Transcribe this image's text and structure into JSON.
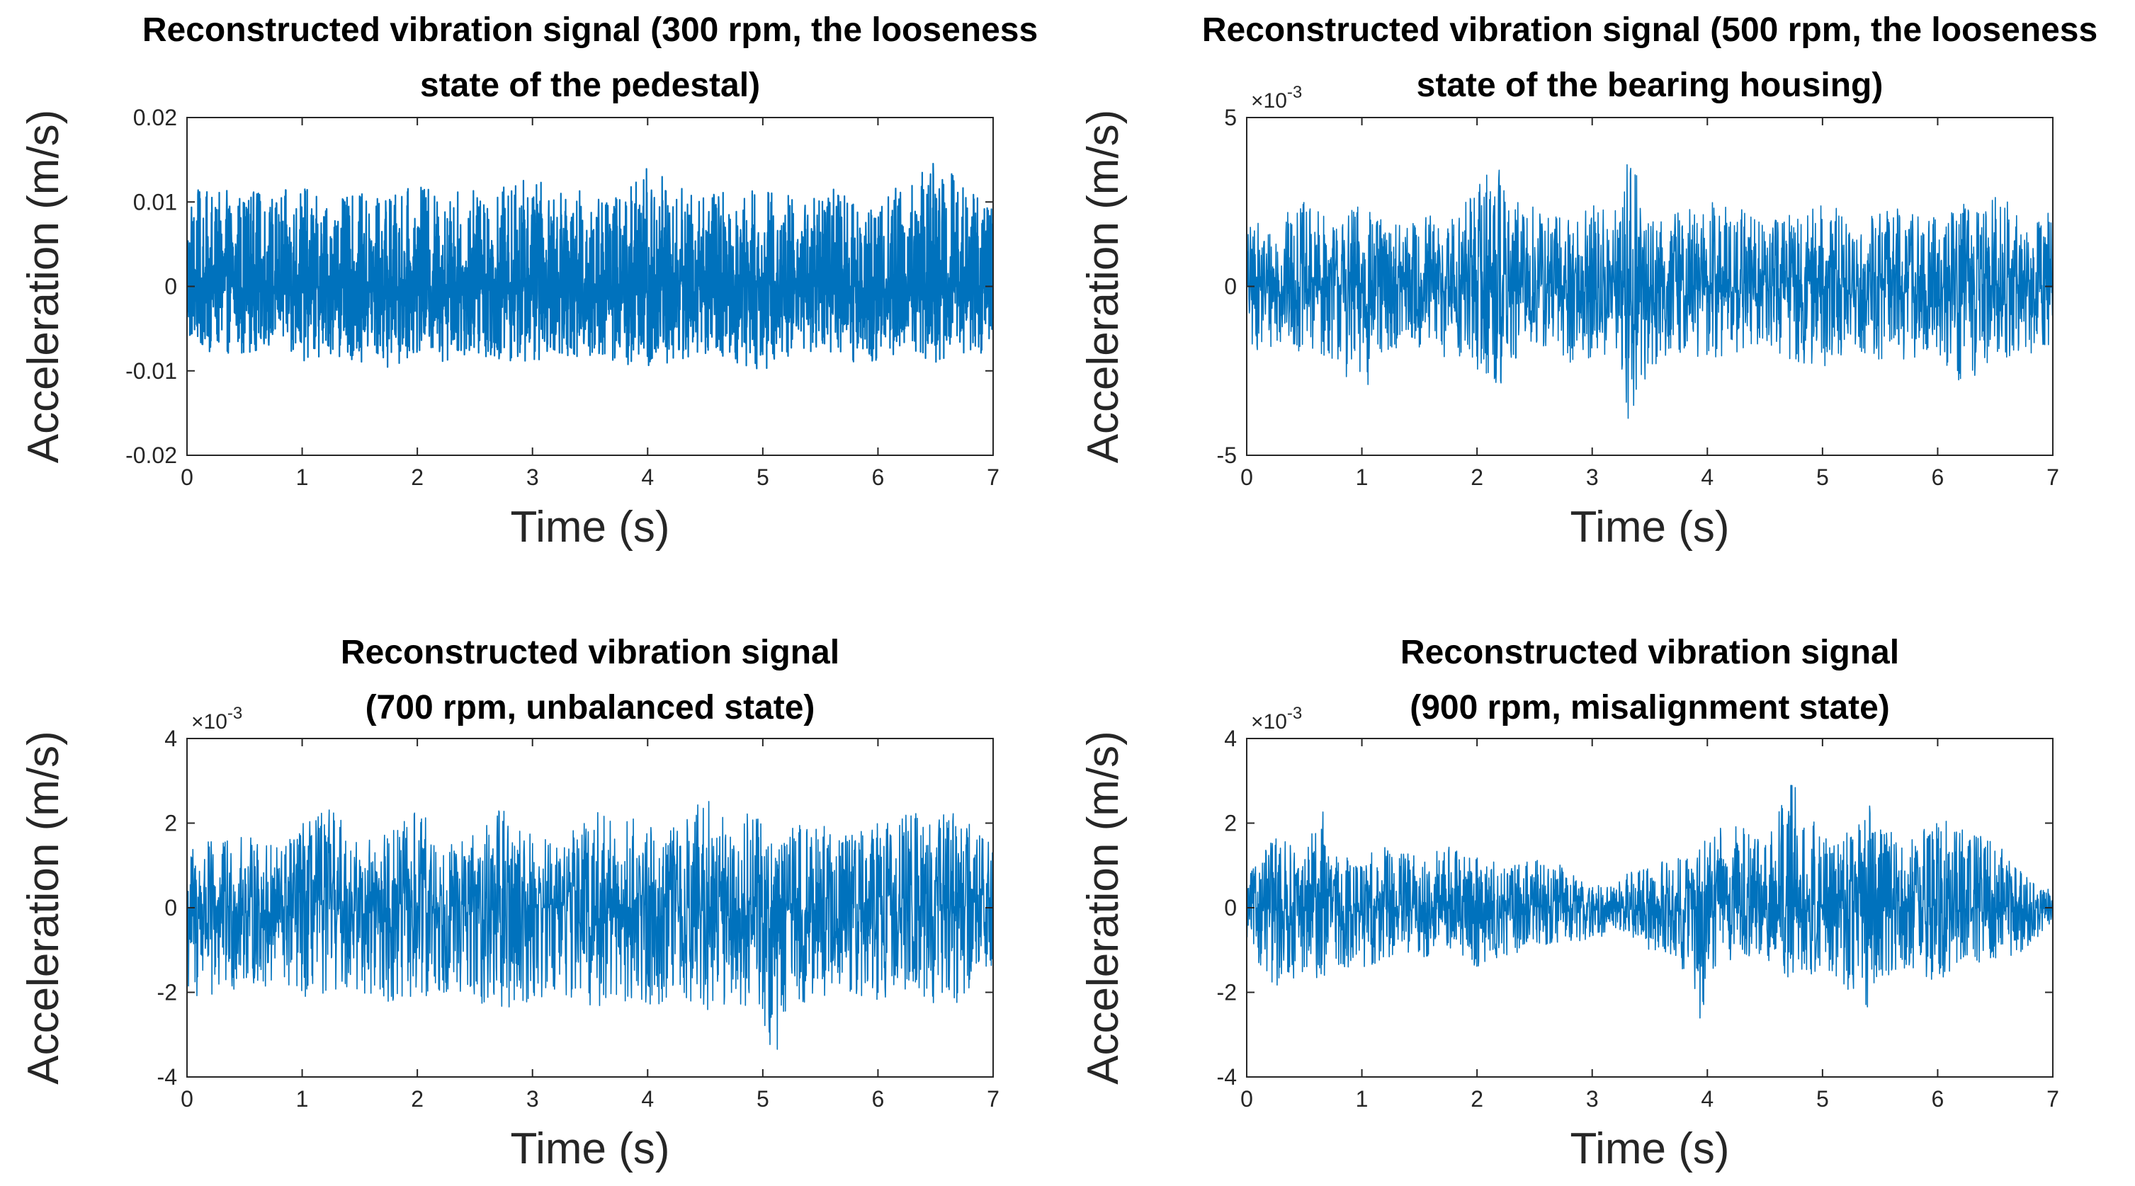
{
  "colors": {
    "series": "#0072BD",
    "axes": "#262626",
    "background": "#ffffff"
  },
  "chart_data": [
    {
      "type": "line",
      "title_lines": [
        "Reconstructed vibration signal (300 rpm, the looseness",
        "state of the pedestal)"
      ],
      "xlabel": "Time (s)",
      "ylabel": "Acceleration (m/s)",
      "xlim": [
        0,
        7
      ],
      "ylim": [
        -0.02,
        0.02
      ],
      "xticks": [
        0,
        1,
        2,
        3,
        4,
        5,
        6,
        7
      ],
      "yticks": [
        -0.02,
        -0.01,
        0,
        0.01,
        0.02
      ],
      "ytick_labels": [
        "-0.02",
        "-0.01",
        "0",
        "0.01",
        "0.02"
      ],
      "exponent_label": "",
      "grid": false,
      "series": [
        {
          "color": "#0072BD",
          "envelope": {
            "dense": true,
            "x": [
              0,
              0.25,
              0.5,
              0.75,
              1.0,
              1.25,
              1.5,
              1.75,
              2.0,
              2.25,
              2.5,
              2.75,
              3.0,
              3.25,
              3.5,
              3.75,
              4.0,
              4.25,
              4.5,
              4.75,
              5.0,
              5.25,
              5.5,
              5.75,
              6.0,
              6.25,
              6.5,
              6.75,
              7.0
            ],
            "max": [
              0.012,
              0.011,
              0.012,
              0.011,
              0.012,
              0.01,
              0.011,
              0.011,
              0.012,
              0.011,
              0.012,
              0.012,
              0.013,
              0.011,
              0.012,
              0.011,
              0.015,
              0.012,
              0.012,
              0.011,
              0.012,
              0.011,
              0.012,
              0.011,
              0.011,
              0.012,
              0.015,
              0.012,
              0.01
            ],
            "min": [
              -0.007,
              -0.008,
              -0.008,
              -0.007,
              -0.009,
              -0.008,
              -0.009,
              -0.01,
              -0.008,
              -0.009,
              -0.008,
              -0.009,
              -0.009,
              -0.008,
              -0.009,
              -0.009,
              -0.011,
              -0.009,
              -0.008,
              -0.009,
              -0.01,
              -0.008,
              -0.008,
              -0.009,
              -0.009,
              -0.008,
              -0.009,
              -0.008,
              -0.008
            ]
          }
        }
      ]
    },
    {
      "type": "line",
      "title_lines": [
        "Reconstructed vibration signal (500 rpm, the looseness",
        "state of the bearing housing)"
      ],
      "xlabel": "Time (s)",
      "ylabel": "Acceleration (m/s)",
      "xlim": [
        0,
        7
      ],
      "ylim": [
        -0.005,
        0.005
      ],
      "xticks": [
        0,
        1,
        2,
        3,
        4,
        5,
        6,
        7
      ],
      "yticks": [
        -0.005,
        0,
        0.005
      ],
      "ytick_labels": [
        "-5",
        "0",
        "5"
      ],
      "exponent_label": "×10",
      "exponent_power": "-3",
      "grid": false,
      "series": [
        {
          "color": "#0072BD",
          "envelope": {
            "dense": false,
            "x": [
              0,
              0.25,
              0.5,
              0.75,
              1.0,
              1.25,
              1.5,
              1.75,
              2.0,
              2.2,
              2.25,
              2.5,
              2.75,
              3.0,
              3.25,
              3.3,
              3.5,
              3.75,
              4.0,
              4.25,
              4.5,
              4.75,
              5.0,
              5.25,
              5.5,
              5.75,
              6.0,
              6.25,
              6.5,
              6.75,
              7.0
            ],
            "max": [
              0.0018,
              0.002,
              0.0025,
              0.002,
              0.0025,
              0.0018,
              0.0022,
              0.002,
              0.0032,
              0.0045,
              0.0025,
              0.0025,
              0.0022,
              0.0025,
              0.0022,
              0.0042,
              0.0022,
              0.0023,
              0.0025,
              0.0025,
              0.002,
              0.0022,
              0.0026,
              0.002,
              0.0024,
              0.0025,
              0.002,
              0.0025,
              0.0028,
              0.0022,
              0.0022
            ],
            "min": [
              -0.002,
              -0.0018,
              -0.002,
              -0.0022,
              -0.0033,
              -0.0018,
              -0.002,
              -0.0022,
              -0.0025,
              -0.0033,
              -0.0024,
              -0.002,
              -0.0022,
              -0.0025,
              -0.0022,
              -0.0044,
              -0.0025,
              -0.002,
              -0.0022,
              -0.002,
              -0.002,
              -0.0022,
              -0.0025,
              -0.0018,
              -0.0022,
              -0.0022,
              -0.002,
              -0.0032,
              -0.0022,
              -0.002,
              -0.002
            ]
          }
        }
      ]
    },
    {
      "type": "line",
      "title_lines": [
        "Reconstructed vibration signal",
        "(700 rpm, unbalanced state)"
      ],
      "xlabel": "Time (s)",
      "ylabel": "Acceleration (m/s)",
      "xlim": [
        0,
        7
      ],
      "ylim": [
        -0.004,
        0.004
      ],
      "xticks": [
        0,
        1,
        2,
        3,
        4,
        5,
        6,
        7
      ],
      "yticks": [
        -0.004,
        -0.002,
        0,
        0.002,
        0.004
      ],
      "ytick_labels": [
        "-4",
        "-2",
        "0",
        "2",
        "4"
      ],
      "exponent_label": "×10",
      "exponent_power": "-3",
      "grid": false,
      "series": [
        {
          "color": "#0072BD",
          "envelope": {
            "dense": false,
            "x": [
              0,
              0.25,
              0.5,
              0.75,
              1.0,
              1.25,
              1.5,
              1.75,
              2.0,
              2.25,
              2.5,
              2.75,
              3.0,
              3.25,
              3.5,
              3.75,
              4.0,
              4.25,
              4.5,
              4.75,
              5.0,
              5.1,
              5.25,
              5.5,
              5.75,
              6.0,
              6.25,
              6.5,
              6.75,
              7.0
            ],
            "max": [
              0.0015,
              0.0016,
              0.0017,
              0.0015,
              0.002,
              0.0024,
              0.0016,
              0.0018,
              0.0024,
              0.0015,
              0.0018,
              0.0024,
              0.0018,
              0.0016,
              0.0024,
              0.002,
              0.0022,
              0.002,
              0.0026,
              0.0022,
              0.0024,
              0.0018,
              0.002,
              0.002,
              0.0018,
              0.002,
              0.0022,
              0.0023,
              0.0022,
              0.0015
            ],
            "min": [
              -0.0023,
              -0.0025,
              -0.0018,
              -0.002,
              -0.0022,
              -0.002,
              -0.002,
              -0.0023,
              -0.0026,
              -0.002,
              -0.0022,
              -0.0026,
              -0.0022,
              -0.002,
              -0.0024,
              -0.0022,
              -0.0025,
              -0.0022,
              -0.0025,
              -0.0022,
              -0.0026,
              -0.0037,
              -0.0022,
              -0.0024,
              -0.002,
              -0.0022,
              -0.002,
              -0.0024,
              -0.0022,
              -0.0015
            ]
          }
        }
      ]
    },
    {
      "type": "line",
      "title_lines": [
        "Reconstructed vibration signal",
        "(900 rpm, misalignment state)"
      ],
      "xlabel": "Time (s)",
      "ylabel": "Acceleration (m/s)",
      "xlim": [
        0,
        7
      ],
      "ylim": [
        -0.004,
        0.004
      ],
      "xticks": [
        0,
        1,
        2,
        3,
        4,
        5,
        6,
        7
      ],
      "yticks": [
        -0.004,
        -0.002,
        0,
        0.002,
        0.004
      ],
      "ytick_labels": [
        "-4",
        "-2",
        "0",
        "2",
        "4"
      ],
      "exponent_label": "×10",
      "exponent_power": "-3",
      "grid": false,
      "series": [
        {
          "color": "#0072BD",
          "envelope": {
            "dense": false,
            "x": [
              0,
              0.25,
              0.5,
              0.65,
              0.75,
              1.0,
              1.25,
              1.5,
              1.75,
              2.0,
              2.25,
              2.5,
              2.75,
              3.0,
              3.25,
              3.5,
              3.75,
              3.95,
              4.0,
              4.25,
              4.5,
              4.75,
              5.0,
              5.25,
              5.4,
              5.5,
              5.75,
              6.0,
              6.25,
              6.5,
              6.75,
              7.0
            ],
            "max": [
              0.0007,
              0.0018,
              0.0012,
              0.0025,
              0.0012,
              0.0012,
              0.0015,
              0.0012,
              0.0015,
              0.0012,
              0.001,
              0.0012,
              0.001,
              0.0005,
              0.0008,
              0.001,
              0.0012,
              0.0015,
              0.0018,
              0.002,
              0.0016,
              0.0031,
              0.0016,
              0.002,
              0.0026,
              0.002,
              0.0016,
              0.0022,
              0.0018,
              0.0016,
              0.0008,
              0.0004
            ],
            "min": [
              -0.0008,
              -0.002,
              -0.0015,
              -0.0018,
              -0.0014,
              -0.0015,
              -0.0012,
              -0.0012,
              -0.001,
              -0.0015,
              -0.0012,
              -0.001,
              -0.0008,
              -0.0008,
              -0.0006,
              -0.001,
              -0.0012,
              -0.0028,
              -0.0015,
              -0.0012,
              -0.0012,
              -0.0018,
              -0.0015,
              -0.002,
              -0.0025,
              -0.0018,
              -0.0015,
              -0.0018,
              -0.0012,
              -0.0015,
              -0.001,
              -0.0004
            ]
          }
        }
      ]
    }
  ]
}
